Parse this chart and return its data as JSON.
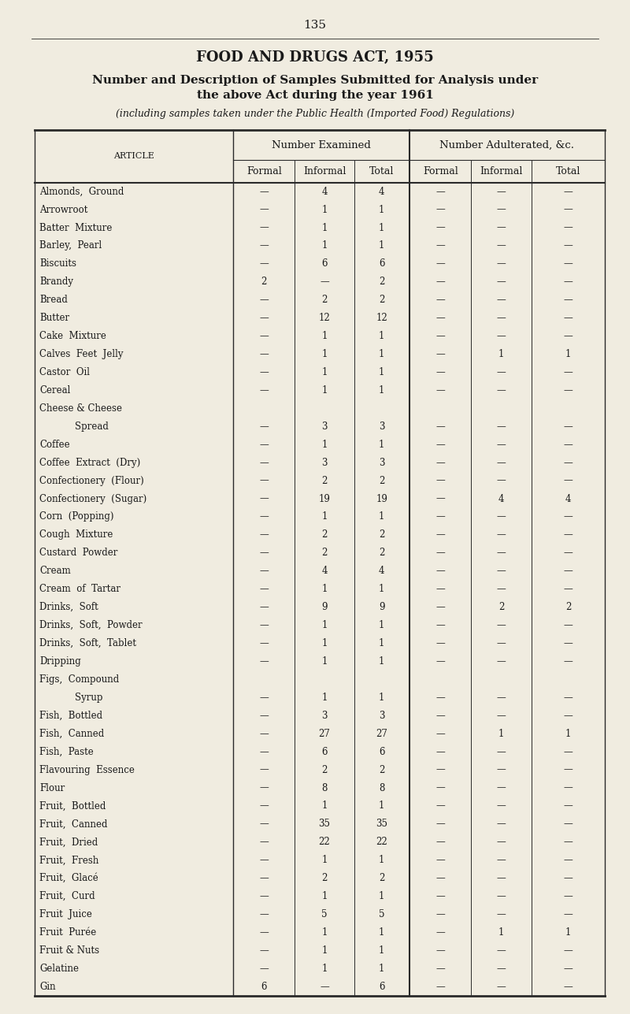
{
  "page_number": "135",
  "title1": "FOOD AND DRUGS ACT, 1955",
  "title2_line1": "Number and Description of Samples Submitted for Analysis under",
  "title2_line2": "the above Act during the year 1961",
  "subtitle": "(including samples taken under the Public Health (Imported Food) Regulations)",
  "col_group1": "Number Examined",
  "col_group2": "Number Adulterated, &c.",
  "col_article": "Article",
  "col_headers": [
    "Formal",
    "Informal",
    "Total",
    "Formal",
    "Informal",
    "Total"
  ],
  "rows": [
    [
      "Almonds,  Ground",
      "—",
      "4",
      "4",
      "—",
      "—",
      "—"
    ],
    [
      "Arrowroot",
      "—",
      "1",
      "1",
      "—",
      "—",
      "—"
    ],
    [
      "Batter  Mixture",
      "—",
      "1",
      "1",
      "—",
      "—",
      "—"
    ],
    [
      "Barley,  Pearl",
      "—",
      "1",
      "1",
      "—",
      "—",
      "—"
    ],
    [
      "Biscuits",
      "—",
      "6",
      "6",
      "—",
      "—",
      "—"
    ],
    [
      "Brandy",
      "2",
      "—",
      "2",
      "—",
      "—",
      "—"
    ],
    [
      "Bread",
      "—",
      "2",
      "2",
      "—",
      "—",
      "—"
    ],
    [
      "Butter",
      "—",
      "12",
      "12",
      "—",
      "—",
      "—"
    ],
    [
      "Cake  Mixture",
      "—",
      "1",
      "1",
      "—",
      "—",
      "—"
    ],
    [
      "Calves  Feet  Jelly",
      "—",
      "1",
      "1",
      "—",
      "1",
      "1"
    ],
    [
      "Castor  Oil",
      "—",
      "1",
      "1",
      "—",
      "—",
      "—"
    ],
    [
      "Cereal",
      "—",
      "1",
      "1",
      "—",
      "—",
      "—"
    ],
    [
      "Cheese & Cheese",
      null,
      null,
      null,
      null,
      null,
      null
    ],
    [
      "            Spread",
      "—",
      "3",
      "3",
      "—",
      "—",
      "—"
    ],
    [
      "Coffee",
      "—",
      "1",
      "1",
      "—",
      "—",
      "—"
    ],
    [
      "Coffee  Extract  (Dry)",
      "—",
      "3",
      "3",
      "—",
      "—",
      "—"
    ],
    [
      "Confectionery  (Flour)",
      "—",
      "2",
      "2",
      "—",
      "—",
      "—"
    ],
    [
      "Confectionery  (Sugar)",
      "—",
      "19",
      "19",
      "—",
      "4",
      "4"
    ],
    [
      "Corn  (Popping)",
      "—",
      "1",
      "1",
      "—",
      "—",
      "—"
    ],
    [
      "Cough  Mixture",
      "—",
      "2",
      "2",
      "—",
      "—",
      "—"
    ],
    [
      "Custard  Powder",
      "—",
      "2",
      "2",
      "—",
      "—",
      "—"
    ],
    [
      "Cream",
      "—",
      "4",
      "4",
      "—",
      "—",
      "—"
    ],
    [
      "Cream  of  Tartar",
      "—",
      "1",
      "1",
      "—",
      "—",
      "—"
    ],
    [
      "Drinks,  Soft",
      "—",
      "9",
      "9",
      "—",
      "2",
      "2"
    ],
    [
      "Drinks,  Soft,  Powder",
      "—",
      "1",
      "1",
      "—",
      "—",
      "—"
    ],
    [
      "Drinks,  Soft,  Tablet",
      "—",
      "1",
      "1",
      "—",
      "—",
      "—"
    ],
    [
      "Dripping",
      "—",
      "1",
      "1",
      "—",
      "—",
      "—"
    ],
    [
      "Figs,  Compound",
      null,
      null,
      null,
      null,
      null,
      null
    ],
    [
      "            Syrup",
      "—",
      "1",
      "1",
      "—",
      "—",
      "—"
    ],
    [
      "Fish,  Bottled",
      "—",
      "3",
      "3",
      "—",
      "—",
      "—"
    ],
    [
      "Fish,  Canned",
      "—",
      "27",
      "27",
      "—",
      "1",
      "1"
    ],
    [
      "Fish,  Paste",
      "—",
      "6",
      "6",
      "—",
      "—",
      "—"
    ],
    [
      "Flavouring  Essence",
      "—",
      "2",
      "2",
      "—",
      "—",
      "—"
    ],
    [
      "Flour",
      "—",
      "8",
      "8",
      "—",
      "—",
      "—"
    ],
    [
      "Fruit,  Bottled",
      "—",
      "1",
      "1",
      "—",
      "—",
      "—"
    ],
    [
      "Fruit,  Canned",
      "—",
      "35",
      "35",
      "—",
      "—",
      "—"
    ],
    [
      "Fruit,  Dried",
      "—",
      "22",
      "22",
      "—",
      "—",
      "—"
    ],
    [
      "Fruit,  Fresh",
      "—",
      "1",
      "1",
      "—",
      "—",
      "—"
    ],
    [
      "Fruit,  Glacé",
      "—",
      "2",
      "2",
      "—",
      "—",
      "—"
    ],
    [
      "Fruit,  Curd",
      "—",
      "1",
      "1",
      "—",
      "—",
      "—"
    ],
    [
      "Fruit  Juice",
      "—",
      "5",
      "5",
      "—",
      "—",
      "—"
    ],
    [
      "Fruit  Purée",
      "—",
      "1",
      "1",
      "—",
      "1",
      "1"
    ],
    [
      "Fruit & Nuts",
      "—",
      "1",
      "1",
      "—",
      "—",
      "—"
    ],
    [
      "Gelatine",
      "—",
      "1",
      "1",
      "—",
      "—",
      "—"
    ],
    [
      "Gin",
      "6",
      "—",
      "6",
      "—",
      "—",
      "—"
    ]
  ],
  "bg_color": "#f0ece0",
  "text_color": "#1a1a1a",
  "line_color": "#2a2a2a"
}
